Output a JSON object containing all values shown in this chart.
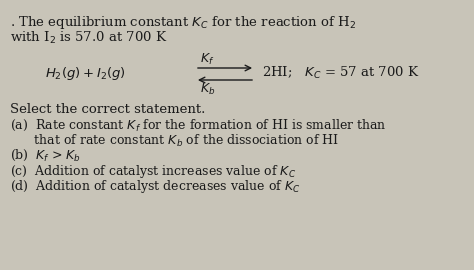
{
  "background_color": "#c8c4b8",
  "text_color": "#1a1a1a",
  "fontsize": 9.5,
  "fontsize_small": 9.0
}
